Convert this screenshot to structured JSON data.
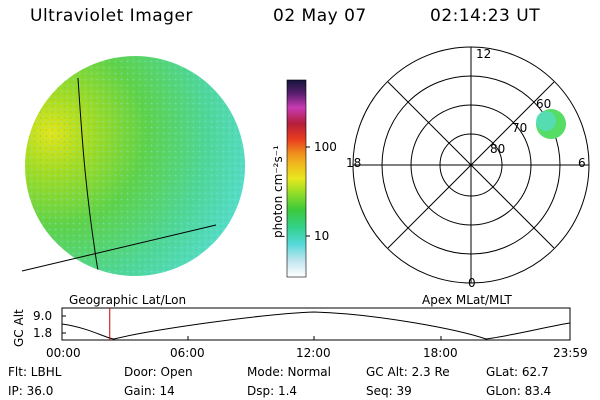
{
  "header": {
    "title": "Ultraviolet Imager",
    "date": "02 May 07",
    "time": "02:14:23 UT"
  },
  "colorbar": {
    "label": "photon cm⁻²s⁻¹",
    "tick_100": "100",
    "tick_10": "10"
  },
  "polar": {
    "label_12": "12",
    "label_18": "18",
    "label_6": "6",
    "label_0": "0",
    "lat_60": "60",
    "lat_70": "70",
    "lat_80": "80",
    "caption": "Apex MLat/MLT"
  },
  "globe": {
    "caption": "Geographic Lat/Lon"
  },
  "altplot": {
    "ylabel": "GC Alt",
    "ytick_top": "9.0",
    "ytick_bottom": "1.8",
    "xticks": [
      "00:00",
      "06:00",
      "12:00",
      "18:00",
      "23:59"
    ],
    "current_time_fraction": 0.094
  },
  "info": {
    "flt": "Flt: LBHL",
    "ip": "IP: 36.0",
    "door": "Door: Open",
    "gain": "Gain: 14",
    "mode": "Mode: Normal",
    "dsp": "Dsp:    1.4",
    "gcalt": "GC Alt: 2.3 Re",
    "seq": "Seq: 39",
    "glat": "GLat:  62.7",
    "glon": "GLon:  83.4"
  }
}
